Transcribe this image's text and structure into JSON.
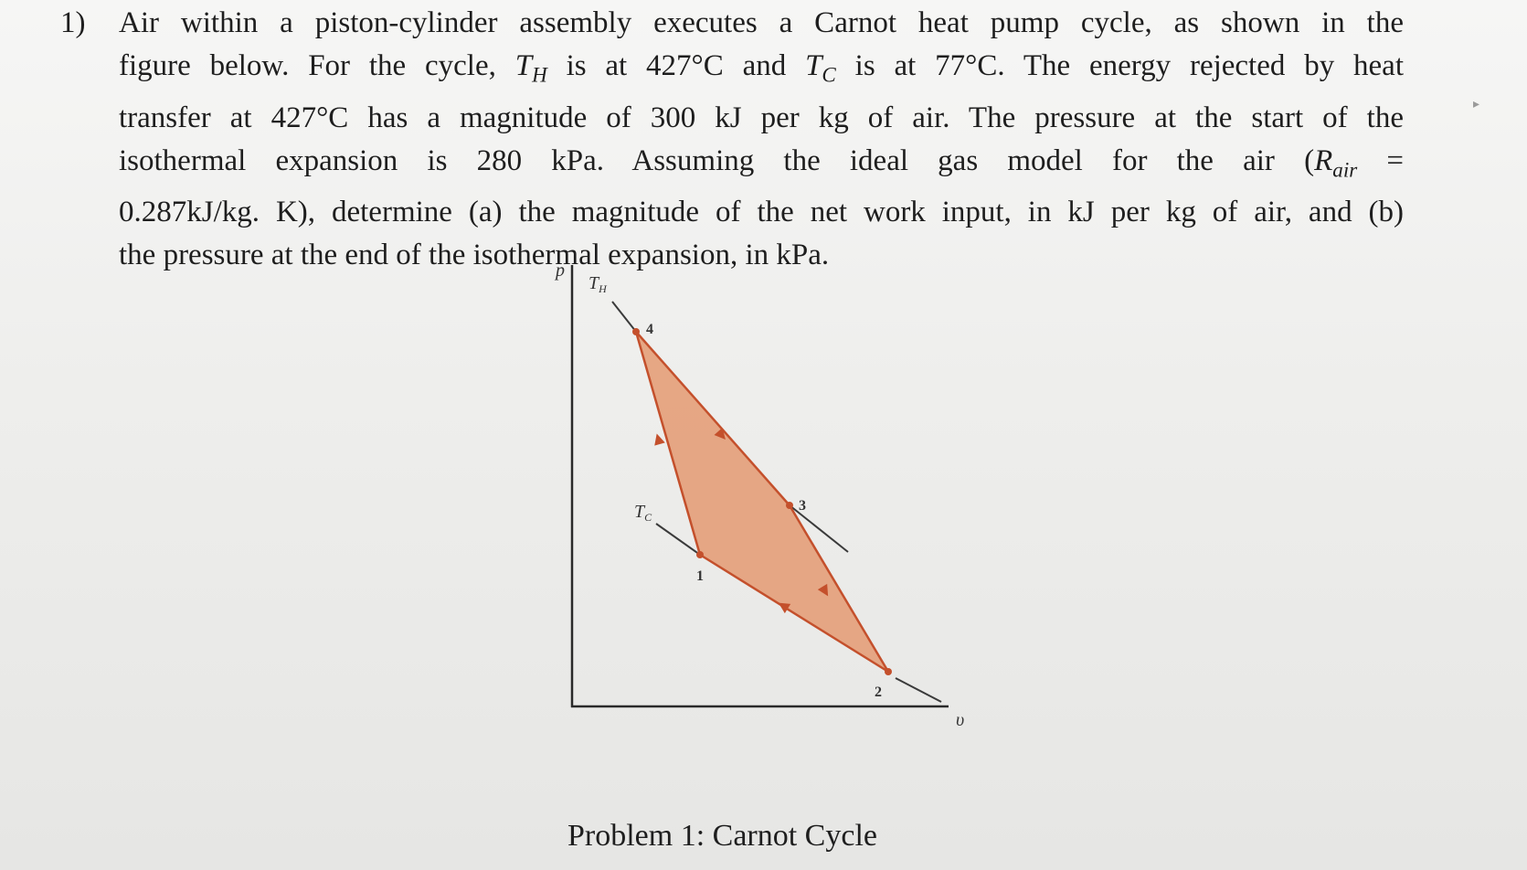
{
  "problem": {
    "number": "1)",
    "lines": [
      "Air within a piston-cylinder assembly executes a Carnot heat pump cycle, as shown in the",
      "figure below. For the cycle, T_H is at 427°C and T_C is at 77°C. The energy rejected by heat",
      "transfer at 427°C has a magnitude of 300 kJ per kg of air. The pressure at the start of the",
      "isothermal expansion is 280 kPa. Assuming the ideal gas model for the air (R_air =",
      "0.287kJ/kg. K), determine (a) the magnitude of the net work input, in kJ per kg of air, and (b)",
      "the pressure at the end of the isothermal expansion, in kPa."
    ]
  },
  "diagram": {
    "axis_y_label": "p",
    "axis_x_label": "υ",
    "isotherm_high_label": "T_H",
    "isotherm_low_label": "T_C",
    "state_labels": [
      "1",
      "2",
      "3",
      "4"
    ],
    "fill_color": "#e5a27e",
    "line_color": "#c4502c",
    "isotherm_color": "#3a3a3a",
    "axis_color": "#2a2a2a"
  },
  "caption": "Problem 1: Carnot Cycle",
  "edge_mark": "▸"
}
